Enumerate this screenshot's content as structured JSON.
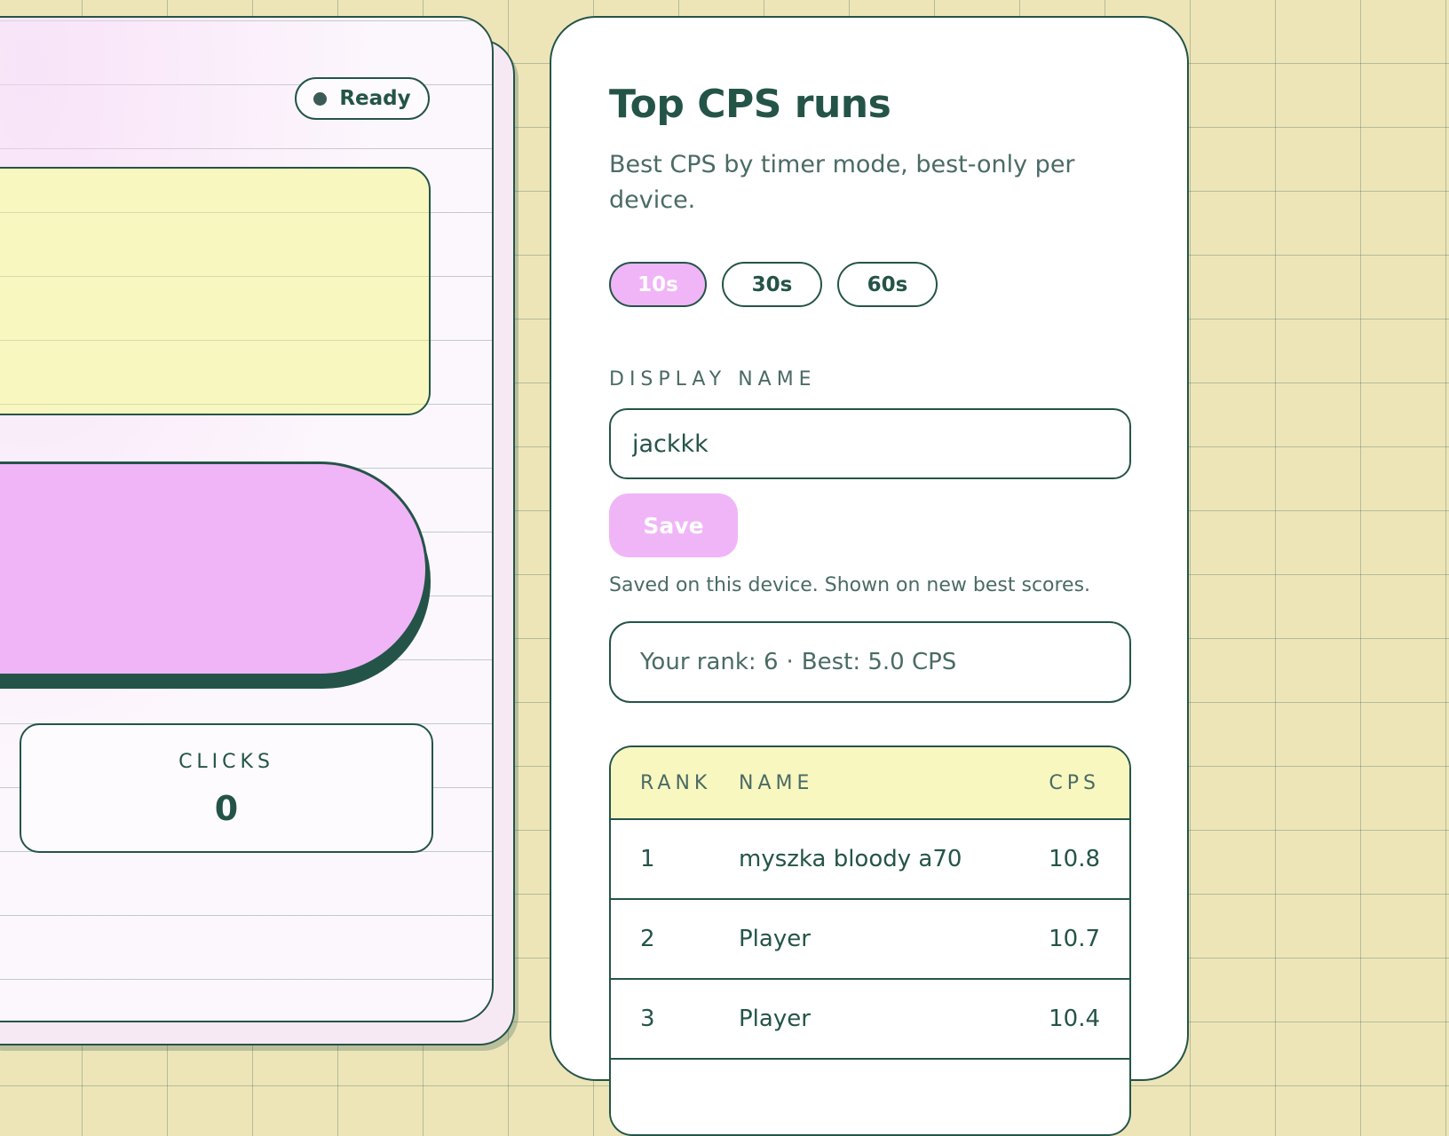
{
  "clicker": {
    "status": "Ready",
    "clicks_label": "CLICKS",
    "clicks_value": "0"
  },
  "leaderboard": {
    "title": "Top CPS runs",
    "subtitle": "Best CPS by timer mode, best-only per device.",
    "modes": [
      {
        "label": "10s",
        "active": true
      },
      {
        "label": "30s",
        "active": false
      },
      {
        "label": "60s",
        "active": false
      }
    ],
    "display_name_label": "DISPLAY NAME",
    "display_name_value": "jackkk",
    "save_label": "Save",
    "save_hint": "Saved on this device. Shown on new best scores.",
    "your_rank": "Your rank: 6",
    "separator": "·",
    "your_best": "Best: 5.0 CPS",
    "columns": [
      "RANK",
      "NAME",
      "CPS"
    ],
    "rows": [
      {
        "rank": "1",
        "name": "myszka bloody a70",
        "cps": "10.8"
      },
      {
        "rank": "2",
        "name": "Player",
        "cps": "10.7"
      },
      {
        "rank": "3",
        "name": "Player",
        "cps": "10.4"
      }
    ]
  },
  "colors": {
    "ink": "#245448",
    "pink": "#f0b5f7",
    "pale_yellow": "#f8f7c0",
    "background": "#ede5b8"
  }
}
